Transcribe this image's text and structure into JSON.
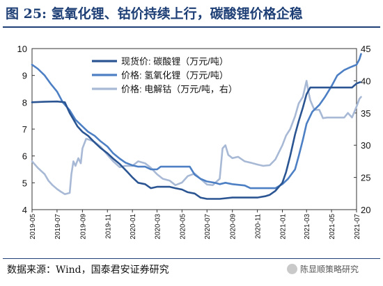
{
  "figure": {
    "title": "图 25:  氢氧化锂、钴价持续上行，碳酸锂价格企稳",
    "source": "数据来源：Wind，国泰君安证券研究",
    "watermark": "陈显顺策略研究",
    "watermark_icon": "wechat-icon"
  },
  "chart_data": {
    "type": "line",
    "title": "",
    "xlabel": "",
    "ylabel": "",
    "y_left_range": [
      4,
      10
    ],
    "y_right_range": [
      20,
      45
    ],
    "y_left_ticks": [
      "4",
      "5",
      "6",
      "7",
      "8",
      "9",
      "10"
    ],
    "y_right_ticks": [
      "20",
      "25",
      "30",
      "35",
      "40",
      "45"
    ],
    "x_range": [
      "2019-05",
      "2021-07"
    ],
    "x_ticks": [
      "2019-05",
      "2019-07",
      "2019-09",
      "2019-11",
      "2020-01",
      "2020-03",
      "2020-05",
      "2020-07",
      "2020-09",
      "2020-11",
      "2021-01",
      "2021-03",
      "2021-05",
      "2021-07"
    ],
    "grid": false,
    "legend_position": "top-center",
    "series": [
      {
        "name": "现货价: 碳酸锂（万元/吨）",
        "axis": "left",
        "color": "#2b5592",
        "width": 2.6,
        "points": [
          [
            "2019-05",
            8.0
          ],
          [
            "2019-06",
            8.02
          ],
          [
            "2019-07",
            8.03
          ],
          [
            "2019-07-20",
            8.0
          ],
          [
            "2019-08",
            7.6
          ],
          [
            "2019-08-20",
            7.1
          ],
          [
            "2019-09",
            6.9
          ],
          [
            "2019-09-15",
            6.75
          ],
          [
            "2019-10",
            6.5
          ],
          [
            "2019-10-15",
            6.3
          ],
          [
            "2019-11",
            6.1
          ],
          [
            "2019-11-15",
            5.9
          ],
          [
            "2019-12",
            5.7
          ],
          [
            "2019-12-20",
            5.4
          ],
          [
            "2020-01",
            5.2
          ],
          [
            "2020-01-15",
            5.0
          ],
          [
            "2020-02",
            4.95
          ],
          [
            "2020-02-15",
            4.8
          ],
          [
            "2020-03",
            4.85
          ],
          [
            "2020-04",
            4.85
          ],
          [
            "2020-04-15",
            4.8
          ],
          [
            "2020-05",
            4.75
          ],
          [
            "2020-05-15",
            4.65
          ],
          [
            "2020-06",
            4.6
          ],
          [
            "2020-06-15",
            4.45
          ],
          [
            "2020-07",
            4.4
          ],
          [
            "2020-08",
            4.4
          ],
          [
            "2020-09",
            4.45
          ],
          [
            "2020-10",
            4.45
          ],
          [
            "2020-11",
            4.45
          ],
          [
            "2020-11-20",
            4.5
          ],
          [
            "2020-12",
            4.55
          ],
          [
            "2020-12-15",
            4.7
          ],
          [
            "2021-01",
            5.0
          ],
          [
            "2021-01-10",
            5.4
          ],
          [
            "2021-01-20",
            6.0
          ],
          [
            "2021-02",
            6.8
          ],
          [
            "2021-02-10",
            7.3
          ],
          [
            "2021-02-20",
            7.8
          ],
          [
            "2021-03",
            8.3
          ],
          [
            "2021-03-10",
            8.55
          ],
          [
            "2021-04",
            8.55
          ],
          [
            "2021-05",
            8.55
          ],
          [
            "2021-06",
            8.55
          ],
          [
            "2021-06-20",
            8.55
          ],
          [
            "2021-07",
            8.7
          ],
          [
            "2021-07-10",
            8.75
          ]
        ]
      },
      {
        "name": "价格: 氢氧化锂（万元/吨）",
        "axis": "left",
        "color": "#4d7fc4",
        "width": 2.6,
        "points": [
          [
            "2019-05",
            9.4
          ],
          [
            "2019-05-15",
            9.25
          ],
          [
            "2019-06",
            9.0
          ],
          [
            "2019-06-15",
            8.7
          ],
          [
            "2019-07",
            8.4
          ],
          [
            "2019-07-15",
            8.0
          ],
          [
            "2019-08",
            7.7
          ],
          [
            "2019-08-15",
            7.35
          ],
          [
            "2019-09",
            7.1
          ],
          [
            "2019-09-15",
            6.9
          ],
          [
            "2019-10",
            6.75
          ],
          [
            "2019-10-15",
            6.55
          ],
          [
            "2019-11",
            6.35
          ],
          [
            "2019-11-15",
            6.1
          ],
          [
            "2019-12",
            5.9
          ],
          [
            "2019-12-15",
            5.75
          ],
          [
            "2020-01",
            5.65
          ],
          [
            "2020-01-15",
            5.6
          ],
          [
            "2020-02",
            5.6
          ],
          [
            "2020-02-15",
            5.5
          ],
          [
            "2020-03",
            5.5
          ],
          [
            "2020-03-10",
            5.6
          ],
          [
            "2020-04",
            5.6
          ],
          [
            "2020-05",
            5.6
          ],
          [
            "2020-05-20",
            5.6
          ],
          [
            "2020-06",
            5.3
          ],
          [
            "2020-06-15",
            5.15
          ],
          [
            "2020-07",
            5.05
          ],
          [
            "2020-07-20",
            5.0
          ],
          [
            "2020-08",
            4.95
          ],
          [
            "2020-08-15",
            5.0
          ],
          [
            "2020-09",
            4.95
          ],
          [
            "2020-10",
            4.9
          ],
          [
            "2020-10-15",
            4.8
          ],
          [
            "2020-11",
            4.8
          ],
          [
            "2020-12",
            4.8
          ],
          [
            "2020-12-15",
            4.8
          ],
          [
            "2021-01",
            4.95
          ],
          [
            "2021-01-15",
            5.15
          ],
          [
            "2021-02",
            5.5
          ],
          [
            "2021-02-10",
            6.0
          ],
          [
            "2021-02-20",
            6.6
          ],
          [
            "2021-03",
            7.2
          ],
          [
            "2021-03-15",
            7.65
          ],
          [
            "2021-04",
            7.9
          ],
          [
            "2021-04-15",
            8.2
          ],
          [
            "2021-05",
            8.6
          ],
          [
            "2021-05-15",
            9.0
          ],
          [
            "2021-06",
            9.2
          ],
          [
            "2021-06-15",
            9.3
          ],
          [
            "2021-07",
            9.4
          ],
          [
            "2021-07-08",
            9.6
          ],
          [
            "2021-07-12",
            9.8
          ]
        ]
      },
      {
        "name": "价格: 电解钴（万元/吨，右）",
        "axis": "right",
        "color": "#a8b9d6",
        "width": 2.6,
        "points": [
          [
            "2019-05",
            27.5
          ],
          [
            "2019-05-15",
            26.5
          ],
          [
            "2019-06",
            25.5
          ],
          [
            "2019-06-10",
            24.5
          ],
          [
            "2019-06-20",
            23.8
          ],
          [
            "2019-07",
            23.2
          ],
          [
            "2019-07-10",
            22.8
          ],
          [
            "2019-07-20",
            22.4
          ],
          [
            "2019-08",
            22.6
          ],
          [
            "2019-08-05",
            25.5
          ],
          [
            "2019-08-10",
            27.5
          ],
          [
            "2019-08-15",
            26.8
          ],
          [
            "2019-08-22",
            28.0
          ],
          [
            "2019-08-28",
            27.2
          ],
          [
            "2019-09",
            29.5
          ],
          [
            "2019-09-10",
            31.0
          ],
          [
            "2019-09-20",
            30.8
          ],
          [
            "2019-10",
            30.5
          ],
          [
            "2019-10-15",
            29.8
          ],
          [
            "2019-11",
            28.5
          ],
          [
            "2019-11-15",
            27.5
          ],
          [
            "2019-12",
            26.6
          ],
          [
            "2019-12-15",
            26.8
          ],
          [
            "2020-01",
            26.8
          ],
          [
            "2020-01-15",
            27.5
          ],
          [
            "2020-02",
            27.2
          ],
          [
            "2020-02-15",
            26.5
          ],
          [
            "2020-03",
            25.5
          ],
          [
            "2020-03-15",
            24.8
          ],
          [
            "2020-04",
            24.5
          ],
          [
            "2020-04-15",
            23.8
          ],
          [
            "2020-05",
            24.2
          ],
          [
            "2020-05-15",
            25.2
          ],
          [
            "2020-06",
            25.6
          ],
          [
            "2020-06-15",
            24.8
          ],
          [
            "2020-07",
            23.9
          ],
          [
            "2020-07-15",
            23.8
          ],
          [
            "2020-08",
            24.8
          ],
          [
            "2020-08-08",
            29.5
          ],
          [
            "2020-08-15",
            30.0
          ],
          [
            "2020-08-22",
            28.5
          ],
          [
            "2020-09",
            28.0
          ],
          [
            "2020-09-15",
            28.2
          ],
          [
            "2020-10",
            27.5
          ],
          [
            "2020-10-15",
            27.3
          ],
          [
            "2020-11",
            27.0
          ],
          [
            "2020-11-15",
            26.8
          ],
          [
            "2020-12",
            26.9
          ],
          [
            "2020-12-15",
            27.8
          ],
          [
            "2021-01",
            30.0
          ],
          [
            "2021-01-10",
            31.5
          ],
          [
            "2021-01-20",
            32.5
          ],
          [
            "2021-02",
            34.5
          ],
          [
            "2021-02-10",
            36.5
          ],
          [
            "2021-02-20",
            37.5
          ],
          [
            "2021-03",
            40.0
          ],
          [
            "2021-03-05",
            38.5
          ],
          [
            "2021-03-10",
            37.0
          ],
          [
            "2021-03-20",
            35.5
          ],
          [
            "2021-04",
            35.5
          ],
          [
            "2021-04-10",
            34.2
          ],
          [
            "2021-04-20",
            34.3
          ],
          [
            "2021-05",
            34.3
          ],
          [
            "2021-05-20",
            34.3
          ],
          [
            "2021-06",
            34.3
          ],
          [
            "2021-06-10",
            35.0
          ],
          [
            "2021-06-20",
            34.3
          ],
          [
            "2021-07",
            36.0
          ],
          [
            "2021-07-08",
            37.2
          ],
          [
            "2021-07-12",
            37.5
          ]
        ]
      }
    ]
  }
}
